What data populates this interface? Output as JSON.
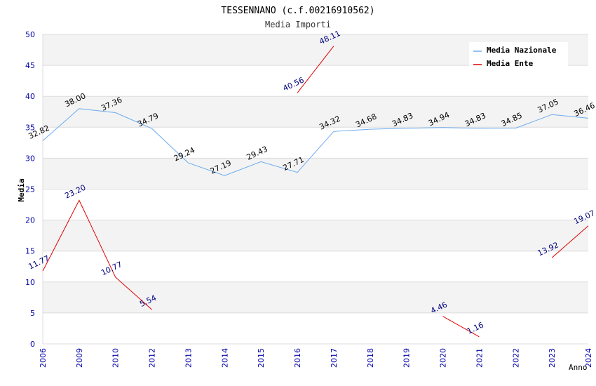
{
  "chart_data": {
    "type": "line",
    "title": "TESSENNANO (c.f.00216910562)",
    "subtitle": "Media Importi",
    "xlabel": "Anno",
    "ylabel": "Media",
    "ylim": [
      0,
      50
    ],
    "yticks": [
      "0",
      "5",
      "10",
      "15",
      "20",
      "25",
      "30",
      "35",
      "40",
      "45",
      "50"
    ],
    "categories": [
      "2006",
      "2009",
      "2010",
      "2012",
      "2013",
      "2014",
      "2015",
      "2016",
      "2017",
      "2018",
      "2019",
      "2020",
      "2021",
      "2022",
      "2023",
      "2024"
    ],
    "grid": true,
    "legend_position": "top-right",
    "series": [
      {
        "name": "Media Nazionale",
        "color": "#6aaaee",
        "values": [
          32.82,
          38.0,
          37.36,
          34.79,
          29.24,
          27.19,
          29.43,
          27.71,
          34.32,
          34.68,
          34.83,
          34.94,
          34.83,
          34.85,
          37.05,
          36.46
        ],
        "labels": [
          "32.82",
          "38.00",
          "37.36",
          "34.79",
          "29.24",
          "27.19",
          "29.43",
          "27.71",
          "34.32",
          "34.68",
          "34.83",
          "34.94",
          "34.83",
          "34.85",
          "37.05",
          "36.46"
        ]
      },
      {
        "name": "Media Ente",
        "color": "#dd0000",
        "values": [
          11.77,
          23.2,
          10.77,
          5.54,
          null,
          null,
          null,
          40.56,
          48.11,
          null,
          null,
          4.46,
          1.16,
          null,
          13.92,
          19.07
        ],
        "labels": [
          "11.77",
          "23.20",
          "10.77",
          "5.54",
          null,
          null,
          null,
          "40.56",
          "48.11",
          null,
          null,
          "4.46",
          "1.16",
          null,
          "13.92",
          "19.07"
        ]
      }
    ]
  }
}
